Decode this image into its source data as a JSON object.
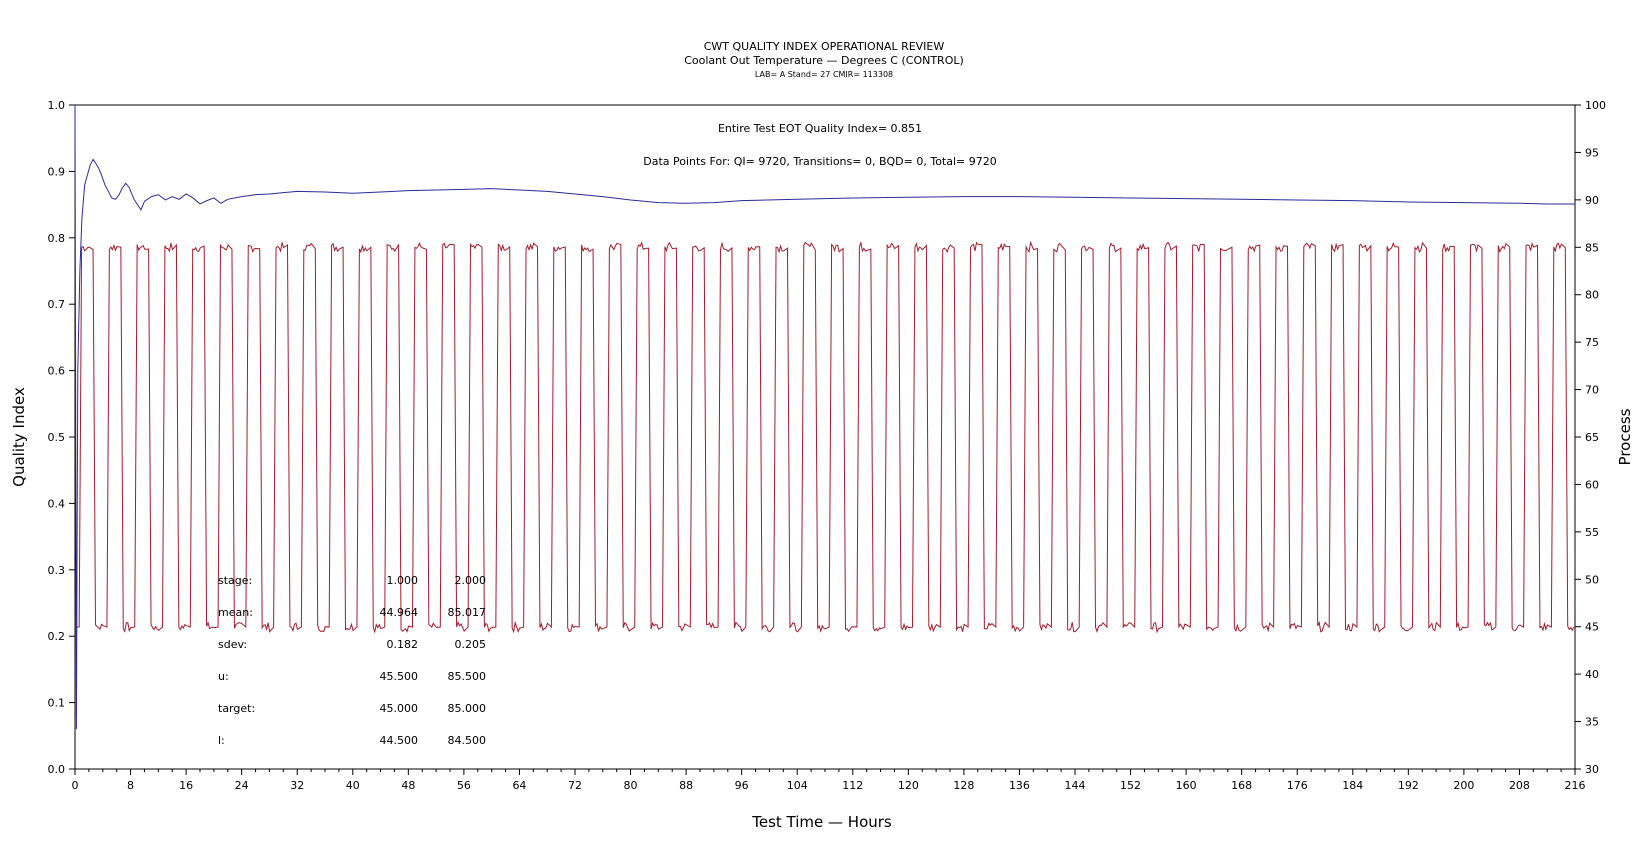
{
  "chart_data": {
    "type": "line",
    "title": "CWT QUALITY INDEX OPERATIONAL REVIEW",
    "subtitle": "Coolant Out Temperature — Degrees C (CONTROL)",
    "subtitle2": "LAB= A Stand= 27 CMIR= 113308",
    "xlabel": "Test Time — Hours",
    "ylabel": "Quality Index",
    "y2label": "Process",
    "xlim": [
      0,
      216
    ],
    "ylim": [
      0,
      1.0
    ],
    "y2lim": [
      30,
      100
    ],
    "x_ticks": [
      "0",
      "8",
      "16",
      "24",
      "32",
      "40",
      "48",
      "56",
      "64",
      "72",
      "80",
      "88",
      "96",
      "104",
      "112",
      "120",
      "128",
      "136",
      "144",
      "152",
      "160",
      "168",
      "176",
      "184",
      "192",
      "200",
      "208",
      "216"
    ],
    "y_ticks": [
      "0.0",
      "0.1",
      "0.2",
      "0.3",
      "0.4",
      "0.5",
      "0.6",
      "0.7",
      "0.8",
      "0.9",
      "1.0"
    ],
    "y2_ticks": [
      "30",
      "35",
      "40",
      "45",
      "50",
      "55",
      "60",
      "65",
      "70",
      "75",
      "80",
      "85",
      "90",
      "95",
      "100"
    ],
    "annotations": {
      "quality_index_text": "Entire Test EOT Quality Index=   0.851",
      "data_points_text": "Data Points For: QI=  9720, Transitions=     0, BQD=     0, Total=  9720"
    },
    "stats_table": {
      "rows": [
        {
          "label": "stage:",
          "v1": "1.000",
          "v2": "2.000"
        },
        {
          "label": "mean:",
          "v1": "44.964",
          "v2": "85.017"
        },
        {
          "label": "sdev:",
          "v1": "0.182",
          "v2": "0.205"
        },
        {
          "label": "u:",
          "v1": "45.500",
          "v2": "85.500"
        },
        {
          "label": "target:",
          "v1": "45.000",
          "v2": "85.000"
        },
        {
          "label": "l:",
          "v1": "44.500",
          "v2": "84.500"
        }
      ]
    },
    "series": [
      {
        "name": "Quality Index",
        "axis": "left",
        "color": "#2b2b9a",
        "x": [
          0,
          0.2,
          0.4,
          0.7,
          1.0,
          1.4,
          1.8,
          2.2,
          2.6,
          3.0,
          3.4,
          3.8,
          4.3,
          4.8,
          5.3,
          5.8,
          6.3,
          6.8,
          7.3,
          7.8,
          8.5,
          9.0,
          9.5,
          10,
          11,
          12,
          13,
          14,
          15,
          16,
          17,
          18,
          19,
          20,
          21,
          22,
          24,
          26,
          28,
          30,
          32,
          36,
          40,
          44,
          48,
          52,
          56,
          60,
          64,
          68,
          72,
          76,
          80,
          84,
          88,
          92,
          96,
          104,
          112,
          120,
          128,
          136,
          144,
          152,
          160,
          168,
          176,
          184,
          192,
          200,
          208,
          212,
          216
        ],
        "values": [
          1.0,
          0.06,
          0.6,
          0.75,
          0.83,
          0.88,
          0.895,
          0.91,
          0.918,
          0.912,
          0.905,
          0.895,
          0.88,
          0.87,
          0.86,
          0.858,
          0.864,
          0.875,
          0.882,
          0.876,
          0.858,
          0.85,
          0.842,
          0.855,
          0.862,
          0.865,
          0.857,
          0.862,
          0.858,
          0.866,
          0.86,
          0.851,
          0.856,
          0.86,
          0.852,
          0.858,
          0.862,
          0.865,
          0.866,
          0.868,
          0.87,
          0.869,
          0.867,
          0.869,
          0.871,
          0.872,
          0.873,
          0.874,
          0.872,
          0.87,
          0.866,
          0.862,
          0.857,
          0.853,
          0.852,
          0.853,
          0.856,
          0.858,
          0.86,
          0.861,
          0.862,
          0.862,
          0.861,
          0.86,
          0.859,
          0.858,
          0.857,
          0.856,
          0.854,
          0.853,
          0.852,
          0.851,
          0.851
        ]
      },
      {
        "name": "Coolant Out Temperature",
        "axis": "right",
        "color": "#a01c2c",
        "pattern": "square_wave",
        "t_start": 0.6,
        "period": 4.0,
        "low_value": 44.964,
        "high_value": 85.017,
        "cycles": 54,
        "x_end": 216
      }
    ]
  }
}
